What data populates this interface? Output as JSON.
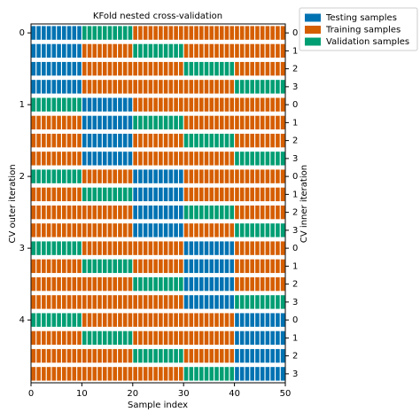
{
  "chart_data": {
    "type": "bar",
    "title": "KFold nested cross-validation",
    "xlabel": "Sample index",
    "ylabel": "CV outer iteration",
    "y2label": "CV inner iteration",
    "xlim": [
      0,
      50
    ],
    "xticks": [
      0,
      10,
      20,
      30,
      40,
      50
    ],
    "yticks": [
      0,
      1,
      2,
      3,
      4
    ],
    "series": [
      {
        "name": "Testing samples",
        "color": "#0072B2"
      },
      {
        "name": "Training samples",
        "color": "#D55E00"
      },
      {
        "name": "Validation samples",
        "color": "#009E73"
      }
    ],
    "rows": [
      {
        "inner": 0,
        "values": [
          0,
          0,
          0,
          0,
          0,
          0,
          0,
          0,
          0,
          0,
          2,
          2,
          2,
          2,
          2,
          2,
          2,
          2,
          2,
          2,
          1,
          1,
          1,
          1,
          1,
          1,
          1,
          1,
          1,
          1,
          1,
          1,
          1,
          1,
          1,
          1,
          1,
          1,
          1,
          1,
          1,
          1,
          1,
          1,
          1,
          1,
          1,
          1,
          1,
          1
        ]
      },
      {
        "inner": 1,
        "values": [
          0,
          0,
          0,
          0,
          0,
          0,
          0,
          0,
          0,
          0,
          1,
          1,
          1,
          1,
          1,
          1,
          1,
          1,
          1,
          1,
          2,
          2,
          2,
          2,
          2,
          2,
          2,
          2,
          2,
          2,
          1,
          1,
          1,
          1,
          1,
          1,
          1,
          1,
          1,
          1,
          1,
          1,
          1,
          1,
          1,
          1,
          1,
          1,
          1,
          1
        ]
      },
      {
        "inner": 2,
        "values": [
          0,
          0,
          0,
          0,
          0,
          0,
          0,
          0,
          0,
          0,
          1,
          1,
          1,
          1,
          1,
          1,
          1,
          1,
          1,
          1,
          1,
          1,
          1,
          1,
          1,
          1,
          1,
          1,
          1,
          1,
          2,
          2,
          2,
          2,
          2,
          2,
          2,
          2,
          2,
          2,
          1,
          1,
          1,
          1,
          1,
          1,
          1,
          1,
          1,
          1
        ]
      },
      {
        "inner": 3,
        "values": [
          0,
          0,
          0,
          0,
          0,
          0,
          0,
          0,
          0,
          0,
          1,
          1,
          1,
          1,
          1,
          1,
          1,
          1,
          1,
          1,
          1,
          1,
          1,
          1,
          1,
          1,
          1,
          1,
          1,
          1,
          1,
          1,
          1,
          1,
          1,
          1,
          1,
          1,
          1,
          1,
          2,
          2,
          2,
          2,
          2,
          2,
          2,
          2,
          2,
          2
        ]
      },
      {
        "inner": 0,
        "values": [
          2,
          2,
          2,
          2,
          2,
          2,
          2,
          2,
          2,
          2,
          0,
          0,
          0,
          0,
          0,
          0,
          0,
          0,
          0,
          0,
          1,
          1,
          1,
          1,
          1,
          1,
          1,
          1,
          1,
          1,
          1,
          1,
          1,
          1,
          1,
          1,
          1,
          1,
          1,
          1,
          1,
          1,
          1,
          1,
          1,
          1,
          1,
          1,
          1,
          1
        ]
      },
      {
        "inner": 1,
        "values": [
          1,
          1,
          1,
          1,
          1,
          1,
          1,
          1,
          1,
          1,
          0,
          0,
          0,
          0,
          0,
          0,
          0,
          0,
          0,
          0,
          2,
          2,
          2,
          2,
          2,
          2,
          2,
          2,
          2,
          2,
          1,
          1,
          1,
          1,
          1,
          1,
          1,
          1,
          1,
          1,
          1,
          1,
          1,
          1,
          1,
          1,
          1,
          1,
          1,
          1
        ]
      },
      {
        "inner": 2,
        "values": [
          1,
          1,
          1,
          1,
          1,
          1,
          1,
          1,
          1,
          1,
          0,
          0,
          0,
          0,
          0,
          0,
          0,
          0,
          0,
          0,
          1,
          1,
          1,
          1,
          1,
          1,
          1,
          1,
          1,
          1,
          2,
          2,
          2,
          2,
          2,
          2,
          2,
          2,
          2,
          2,
          1,
          1,
          1,
          1,
          1,
          1,
          1,
          1,
          1,
          1
        ]
      },
      {
        "inner": 3,
        "values": [
          1,
          1,
          1,
          1,
          1,
          1,
          1,
          1,
          1,
          1,
          0,
          0,
          0,
          0,
          0,
          0,
          0,
          0,
          0,
          0,
          1,
          1,
          1,
          1,
          1,
          1,
          1,
          1,
          1,
          1,
          1,
          1,
          1,
          1,
          1,
          1,
          1,
          1,
          1,
          1,
          2,
          2,
          2,
          2,
          2,
          2,
          2,
          2,
          2,
          2
        ]
      },
      {
        "inner": 0,
        "values": [
          2,
          2,
          2,
          2,
          2,
          2,
          2,
          2,
          2,
          2,
          1,
          1,
          1,
          1,
          1,
          1,
          1,
          1,
          1,
          1,
          0,
          0,
          0,
          0,
          0,
          0,
          0,
          0,
          0,
          0,
          1,
          1,
          1,
          1,
          1,
          1,
          1,
          1,
          1,
          1,
          1,
          1,
          1,
          1,
          1,
          1,
          1,
          1,
          1,
          1
        ]
      },
      {
        "inner": 1,
        "values": [
          1,
          1,
          1,
          1,
          1,
          1,
          1,
          1,
          1,
          1,
          2,
          2,
          2,
          2,
          2,
          2,
          2,
          2,
          2,
          2,
          0,
          0,
          0,
          0,
          0,
          0,
          0,
          0,
          0,
          0,
          1,
          1,
          1,
          1,
          1,
          1,
          1,
          1,
          1,
          1,
          1,
          1,
          1,
          1,
          1,
          1,
          1,
          1,
          1,
          1
        ]
      },
      {
        "inner": 2,
        "values": [
          1,
          1,
          1,
          1,
          1,
          1,
          1,
          1,
          1,
          1,
          1,
          1,
          1,
          1,
          1,
          1,
          1,
          1,
          1,
          1,
          0,
          0,
          0,
          0,
          0,
          0,
          0,
          0,
          0,
          0,
          2,
          2,
          2,
          2,
          2,
          2,
          2,
          2,
          2,
          2,
          1,
          1,
          1,
          1,
          1,
          1,
          1,
          1,
          1,
          1
        ]
      },
      {
        "inner": 3,
        "values": [
          1,
          1,
          1,
          1,
          1,
          1,
          1,
          1,
          1,
          1,
          1,
          1,
          1,
          1,
          1,
          1,
          1,
          1,
          1,
          1,
          0,
          0,
          0,
          0,
          0,
          0,
          0,
          0,
          0,
          0,
          1,
          1,
          1,
          1,
          1,
          1,
          1,
          1,
          1,
          1,
          2,
          2,
          2,
          2,
          2,
          2,
          2,
          2,
          2,
          2
        ]
      },
      {
        "inner": 0,
        "values": [
          2,
          2,
          2,
          2,
          2,
          2,
          2,
          2,
          2,
          2,
          1,
          1,
          1,
          1,
          1,
          1,
          1,
          1,
          1,
          1,
          1,
          1,
          1,
          1,
          1,
          1,
          1,
          1,
          1,
          1,
          0,
          0,
          0,
          0,
          0,
          0,
          0,
          0,
          0,
          0,
          1,
          1,
          1,
          1,
          1,
          1,
          1,
          1,
          1,
          1
        ]
      },
      {
        "inner": 1,
        "values": [
          1,
          1,
          1,
          1,
          1,
          1,
          1,
          1,
          1,
          1,
          2,
          2,
          2,
          2,
          2,
          2,
          2,
          2,
          2,
          2,
          1,
          1,
          1,
          1,
          1,
          1,
          1,
          1,
          1,
          1,
          0,
          0,
          0,
          0,
          0,
          0,
          0,
          0,
          0,
          0,
          1,
          1,
          1,
          1,
          1,
          1,
          1,
          1,
          1,
          1
        ]
      },
      {
        "inner": 2,
        "values": [
          1,
          1,
          1,
          1,
          1,
          1,
          1,
          1,
          1,
          1,
          1,
          1,
          1,
          1,
          1,
          1,
          1,
          1,
          1,
          1,
          2,
          2,
          2,
          2,
          2,
          2,
          2,
          2,
          2,
          2,
          0,
          0,
          0,
          0,
          0,
          0,
          0,
          0,
          0,
          0,
          1,
          1,
          1,
          1,
          1,
          1,
          1,
          1,
          1,
          1
        ]
      },
      {
        "inner": 3,
        "values": [
          1,
          1,
          1,
          1,
          1,
          1,
          1,
          1,
          1,
          1,
          1,
          1,
          1,
          1,
          1,
          1,
          1,
          1,
          1,
          1,
          1,
          1,
          1,
          1,
          1,
          1,
          1,
          1,
          1,
          1,
          0,
          0,
          0,
          0,
          0,
          0,
          0,
          0,
          0,
          0,
          2,
          2,
          2,
          2,
          2,
          2,
          2,
          2,
          2,
          2
        ]
      },
      {
        "inner": 0,
        "values": [
          2,
          2,
          2,
          2,
          2,
          2,
          2,
          2,
          2,
          2,
          1,
          1,
          1,
          1,
          1,
          1,
          1,
          1,
          1,
          1,
          1,
          1,
          1,
          1,
          1,
          1,
          1,
          1,
          1,
          1,
          1,
          1,
          1,
          1,
          1,
          1,
          1,
          1,
          1,
          1,
          0,
          0,
          0,
          0,
          0,
          0,
          0,
          0,
          0,
          0
        ]
      },
      {
        "inner": 1,
        "values": [
          1,
          1,
          1,
          1,
          1,
          1,
          1,
          1,
          1,
          1,
          2,
          2,
          2,
          2,
          2,
          2,
          2,
          2,
          2,
          2,
          1,
          1,
          1,
          1,
          1,
          1,
          1,
          1,
          1,
          1,
          1,
          1,
          1,
          1,
          1,
          1,
          1,
          1,
          1,
          1,
          0,
          0,
          0,
          0,
          0,
          0,
          0,
          0,
          0,
          0
        ]
      },
      {
        "inner": 2,
        "values": [
          1,
          1,
          1,
          1,
          1,
          1,
          1,
          1,
          1,
          1,
          1,
          1,
          1,
          1,
          1,
          1,
          1,
          1,
          1,
          1,
          2,
          2,
          2,
          2,
          2,
          2,
          2,
          2,
          2,
          2,
          1,
          1,
          1,
          1,
          1,
          1,
          1,
          1,
          1,
          1,
          0,
          0,
          0,
          0,
          0,
          0,
          0,
          0,
          0,
          0
        ]
      },
      {
        "inner": 3,
        "values": [
          1,
          1,
          1,
          1,
          1,
          1,
          1,
          1,
          1,
          1,
          1,
          1,
          1,
          1,
          1,
          1,
          1,
          1,
          1,
          1,
          1,
          1,
          1,
          1,
          1,
          1,
          1,
          1,
          1,
          1,
          2,
          2,
          2,
          2,
          2,
          2,
          2,
          2,
          2,
          2,
          0,
          0,
          0,
          0,
          0,
          0,
          0,
          0,
          0,
          0
        ]
      }
    ]
  }
}
